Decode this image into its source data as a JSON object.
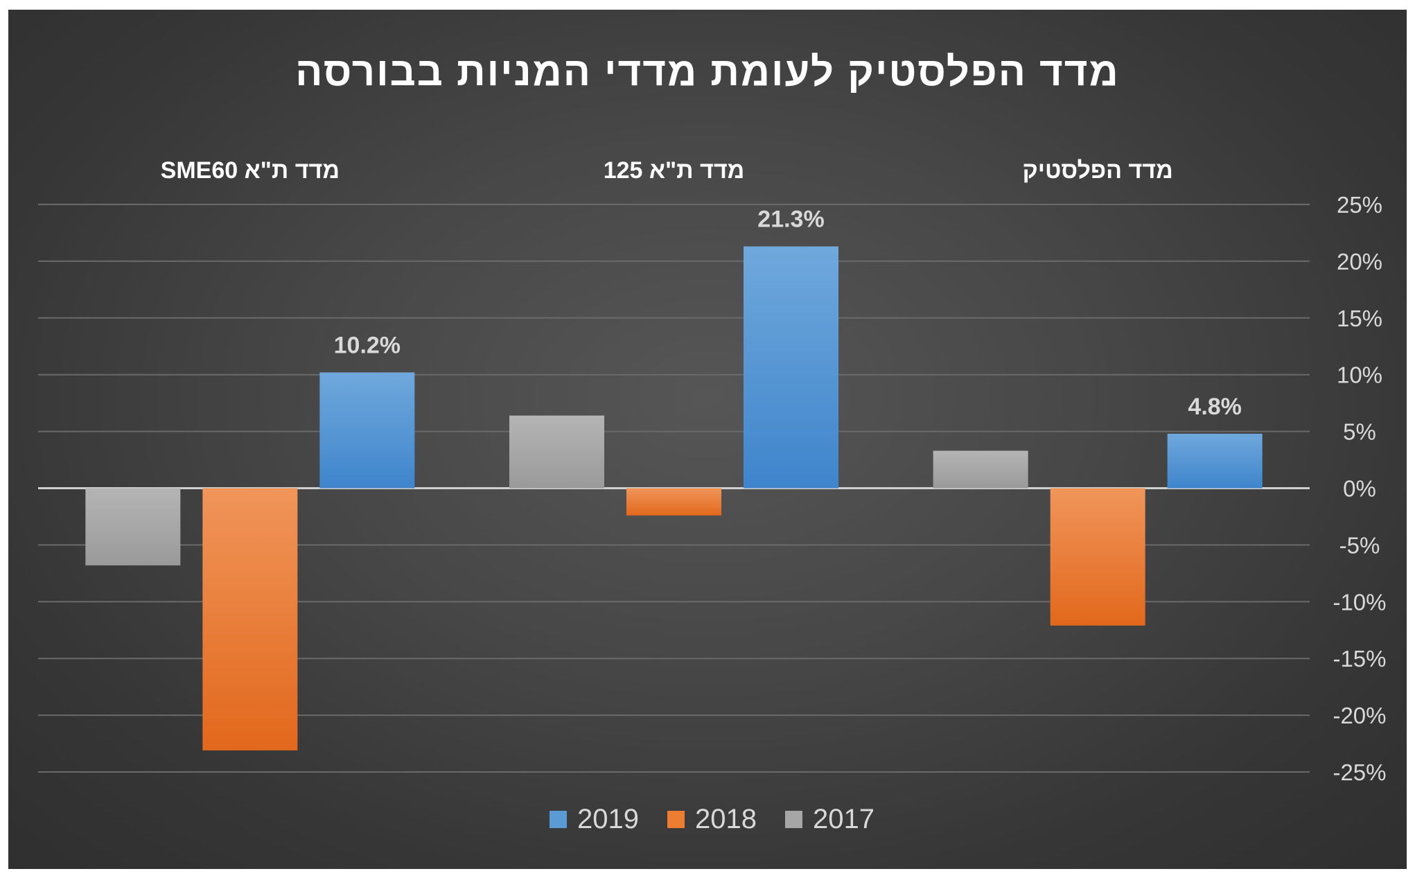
{
  "chart_data": {
    "type": "bar",
    "title": "מדד הפלסטיק לעומת מדדי המניות בבורסה",
    "categories": [
      "מדד ת\"א SME60",
      "מדד ת\"א 125",
      "מדד הפלסטיק"
    ],
    "series": [
      {
        "name": "2017",
        "color": "#a6a6a6",
        "values": [
          -6.8,
          6.4,
          3.3
        ]
      },
      {
        "name": "2018",
        "color": "#ed7d31",
        "values": [
          -23.1,
          -2.4,
          -12.1
        ]
      },
      {
        "name": "2019",
        "color": "#5b9bd5",
        "values": [
          10.2,
          21.3,
          4.8
        ]
      }
    ],
    "data_labels": [
      {
        "series": "2019",
        "category_index": 0,
        "text": "10.2%"
      },
      {
        "series": "2019",
        "category_index": 1,
        "text": "21.3%"
      },
      {
        "series": "2019",
        "category_index": 2,
        "text": "4.8%"
      }
    ],
    "y_axis": {
      "min": -25,
      "max": 25,
      "step": 5,
      "ticks": [
        "25%",
        "20%",
        "15%",
        "10%",
        "5%",
        "0%",
        "-5%",
        "-10%",
        "-15%",
        "-20%",
        "-25%"
      ],
      "position": "right"
    },
    "legend": {
      "position": "bottom",
      "items": [
        "2019",
        "2018",
        "2017"
      ]
    },
    "gridlines": true,
    "background": "dark-gray-gradient"
  }
}
